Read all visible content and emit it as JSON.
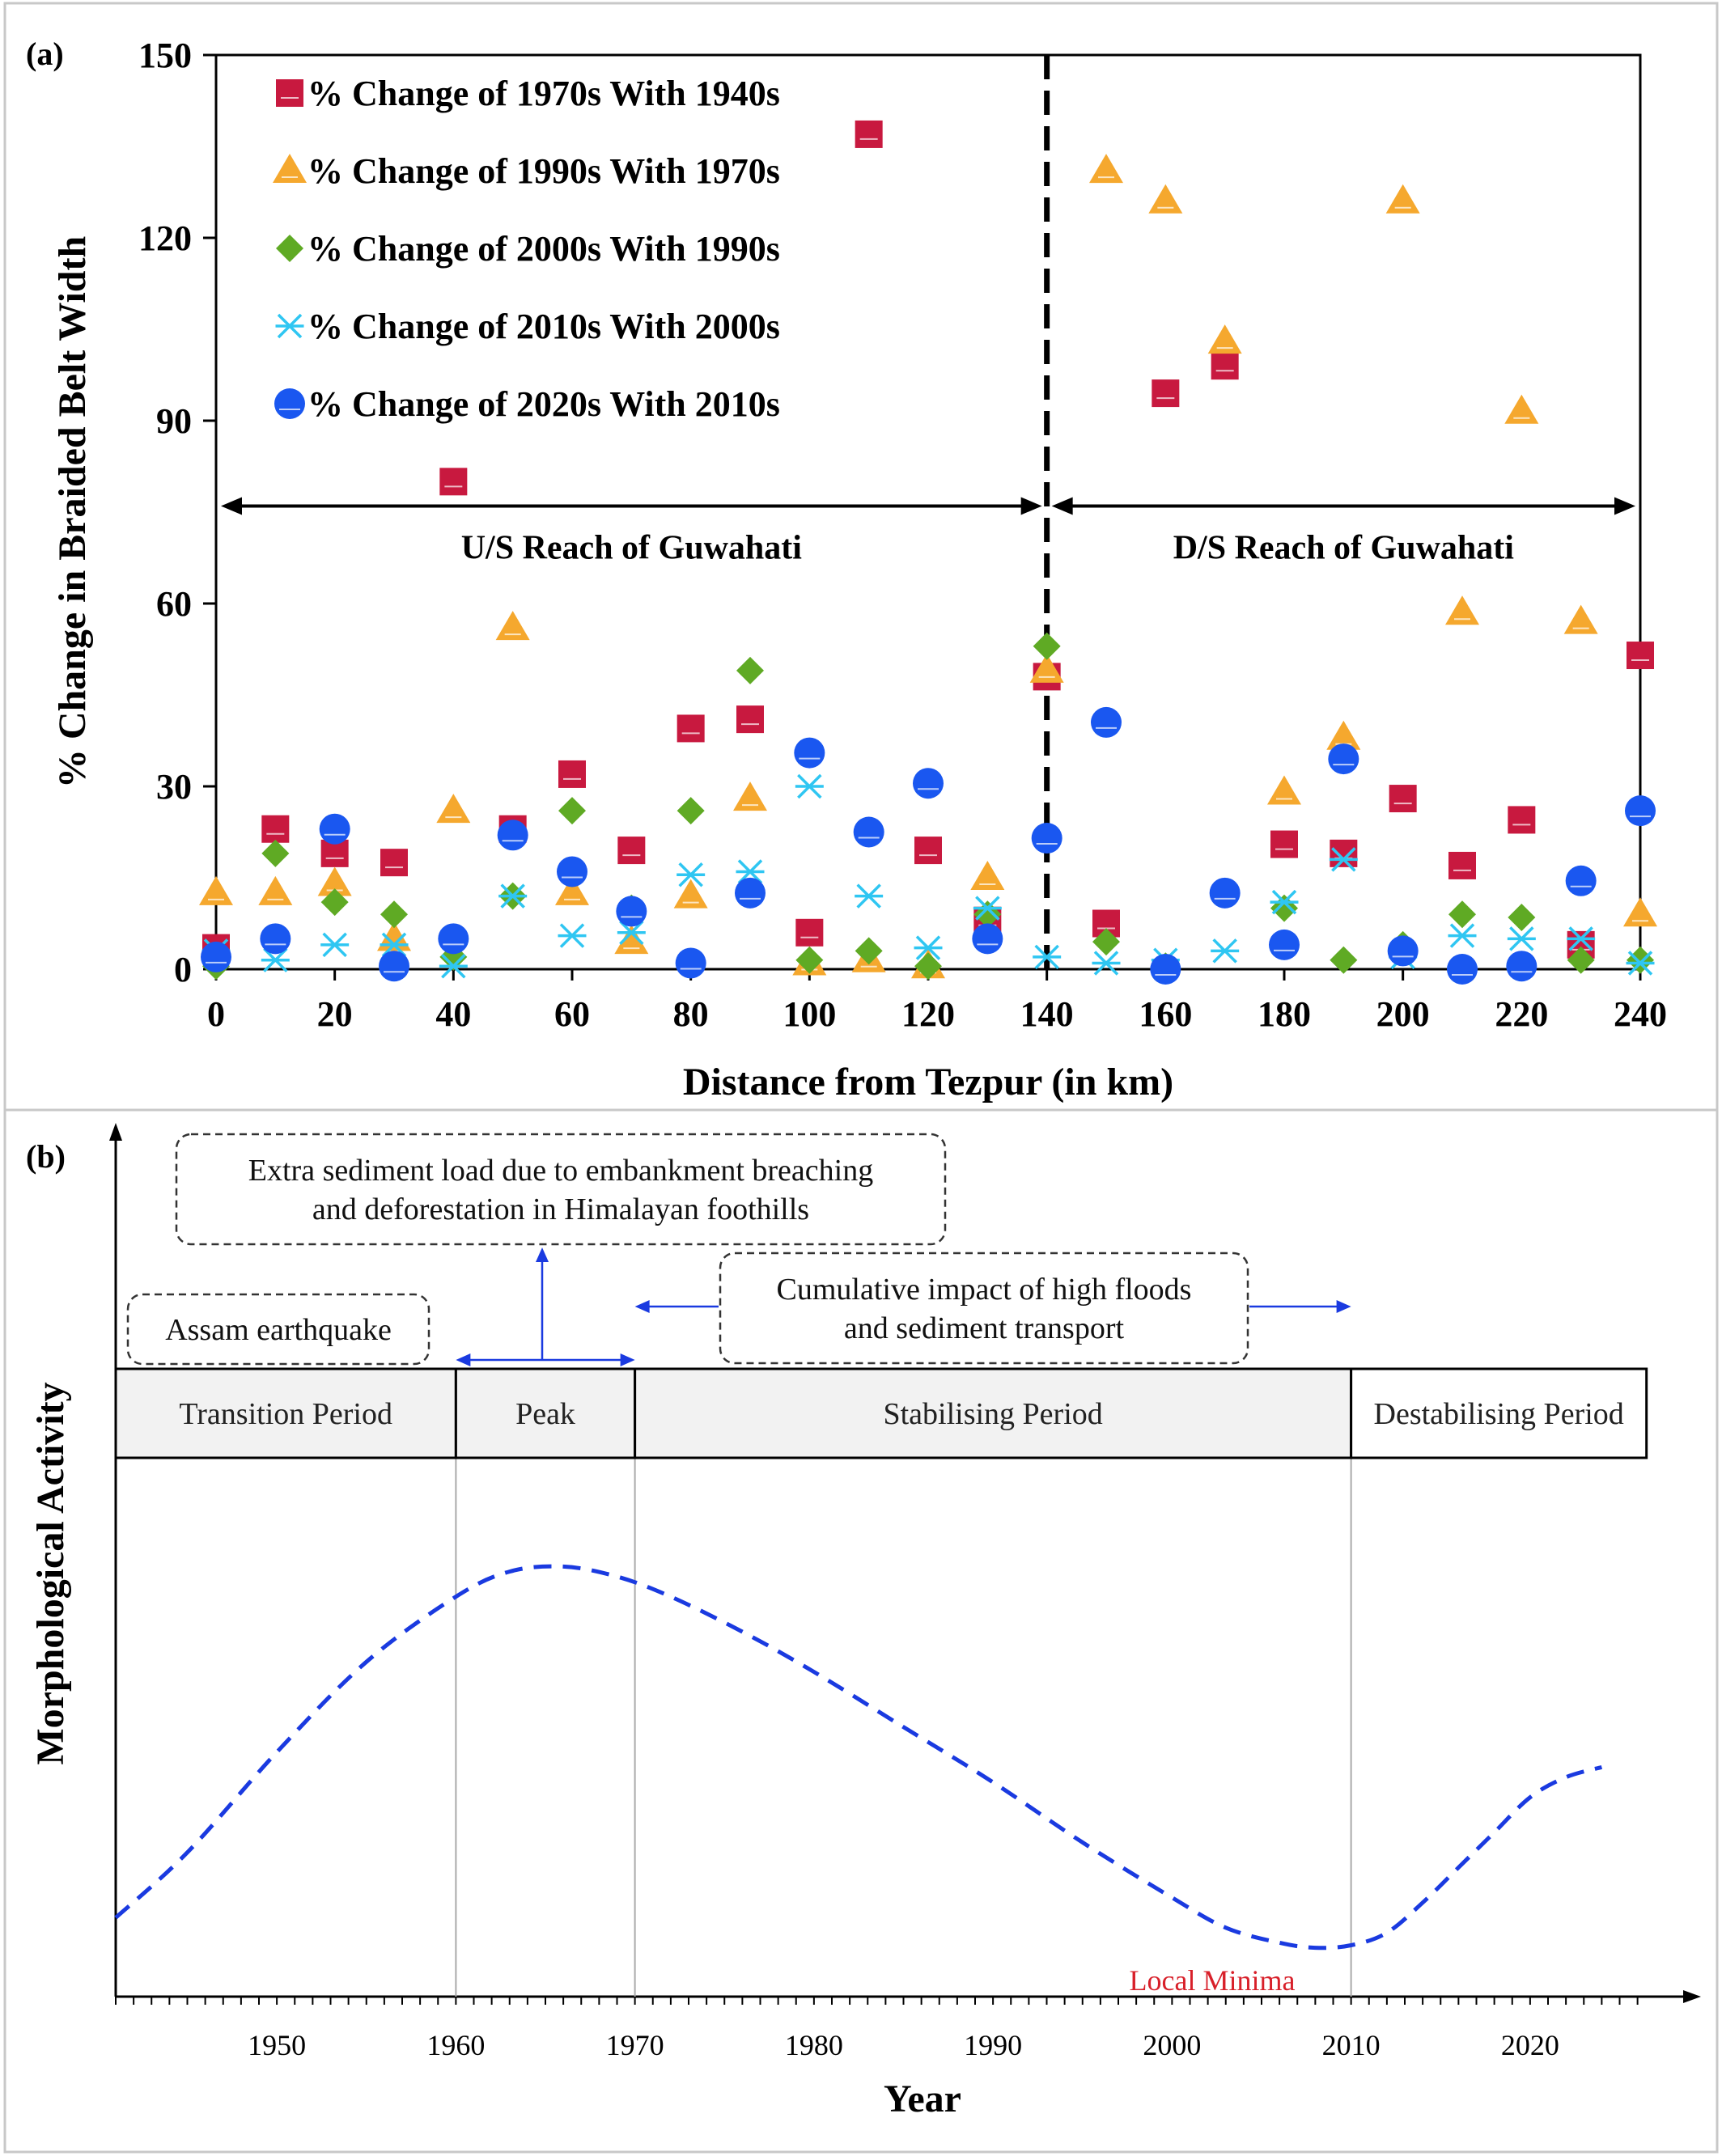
{
  "chart_data": [
    {
      "type": "scatter",
      "panel_label": "(a)",
      "xlabel": "Distance from Tezpur (in km)",
      "ylabel": "% Change in Braided Belt Width",
      "xlim": [
        0,
        240
      ],
      "ylim": [
        0,
        150
      ],
      "x_ticks": [
        "0",
        "20",
        "40",
        "60",
        "80",
        "100",
        "120",
        "140",
        "160",
        "180",
        "200",
        "220",
        "240"
      ],
      "y_ticks": [
        "0",
        "30",
        "60",
        "90",
        "120",
        "150"
      ],
      "grid": false,
      "legend_position": "top-left",
      "divider": {
        "x": 140,
        "style": "dashed"
      },
      "reaches": [
        {
          "label": "U/S Reach of Guwahati",
          "from": 0,
          "to": 140
        },
        {
          "label": "D/S Reach of Guwahati",
          "from": 140,
          "to": 240
        }
      ],
      "reach_arrow_y": 76,
      "series": [
        {
          "name": "% Change of 1970s With 1940s",
          "marker": "square",
          "color": "#C8193F",
          "points": [
            [
              0,
              3.5
            ],
            [
              10,
              23
            ],
            [
              20,
              19
            ],
            [
              30,
              17.5
            ],
            [
              40,
              80
            ],
            [
              50,
              23
            ],
            [
              60,
              32
            ],
            [
              70,
              19.5
            ],
            [
              80,
              39.5
            ],
            [
              90,
              41
            ],
            [
              100,
              6
            ],
            [
              110,
              137
            ],
            [
              120,
              19.5
            ],
            [
              130,
              8
            ],
            [
              140,
              48
            ],
            [
              150,
              7.5
            ],
            [
              160,
              94.5
            ],
            [
              170,
              99
            ],
            [
              180,
              20.5
            ],
            [
              190,
              19
            ],
            [
              200,
              28
            ],
            [
              210,
              17
            ],
            [
              220,
              24.5
            ],
            [
              230,
              4
            ],
            [
              240,
              51.5
            ]
          ]
        },
        {
          "name": "% Change of 1990s With 1970s",
          "marker": "triangle",
          "color": "#F5A82E",
          "points": [
            [
              0,
              12.5
            ],
            [
              10,
              12.5
            ],
            [
              20,
              14
            ],
            [
              30,
              5
            ],
            [
              40,
              26
            ],
            [
              50,
              56
            ],
            [
              60,
              12.5
            ],
            [
              70,
              4.5
            ],
            [
              80,
              12
            ],
            [
              90,
              28
            ],
            [
              100,
              1
            ],
            [
              110,
              1.5
            ],
            [
              120,
              0.5
            ],
            [
              130,
              15
            ],
            [
              140,
              49
            ],
            [
              150,
              131
            ],
            [
              160,
              126
            ],
            [
              170,
              103
            ],
            [
              180,
              29
            ],
            [
              190,
              38
            ],
            [
              200,
              126
            ],
            [
              210,
              58.5
            ],
            [
              220,
              91.5
            ],
            [
              230,
              57
            ],
            [
              240,
              9
            ]
          ]
        },
        {
          "name": "% Change of 2000s With 1990s",
          "marker": "diamond",
          "color": "#5FAA24",
          "points": [
            [
              0,
              0.5
            ],
            [
              10,
              19
            ],
            [
              20,
              11
            ],
            [
              30,
              9
            ],
            [
              40,
              2
            ],
            [
              50,
              12
            ],
            [
              60,
              26
            ],
            [
              70,
              10
            ],
            [
              80,
              26
            ],
            [
              90,
              49
            ],
            [
              100,
              1.5
            ],
            [
              110,
              3
            ],
            [
              120,
              0.5
            ],
            [
              130,
              9
            ],
            [
              140,
              53
            ],
            [
              150,
              4.5
            ],
            [
              160,
              0.5
            ],
            [
              180,
              10
            ],
            [
              190,
              1.5
            ],
            [
              200,
              4
            ],
            [
              210,
              9
            ],
            [
              220,
              8.5
            ],
            [
              230,
              1.5
            ],
            [
              240,
              1.5
            ]
          ]
        },
        {
          "name": "% Change of 2010s With 2000s",
          "marker": "star",
          "color": "#2FC6F2",
          "points": [
            [
              0,
              3
            ],
            [
              10,
              1.5
            ],
            [
              20,
              4
            ],
            [
              30,
              4
            ],
            [
              40,
              0.5
            ],
            [
              50,
              12
            ],
            [
              60,
              5.5
            ],
            [
              70,
              6
            ],
            [
              80,
              15.5
            ],
            [
              90,
              16
            ],
            [
              100,
              30
            ],
            [
              110,
              12
            ],
            [
              120,
              3.5
            ],
            [
              130,
              10
            ],
            [
              140,
              2
            ],
            [
              150,
              1
            ],
            [
              160,
              1.5
            ],
            [
              170,
              3
            ],
            [
              180,
              11
            ],
            [
              190,
              18
            ],
            [
              200,
              2
            ],
            [
              210,
              5.5
            ],
            [
              220,
              5
            ],
            [
              230,
              5
            ],
            [
              240,
              1
            ]
          ]
        },
        {
          "name": "% Change of 2020s With 2010s",
          "marker": "circle",
          "color": "#1A57F0",
          "points": [
            [
              0,
              2
            ],
            [
              10,
              5
            ],
            [
              20,
              23
            ],
            [
              30,
              0.5
            ],
            [
              40,
              5
            ],
            [
              50,
              22
            ],
            [
              60,
              16
            ],
            [
              70,
              9.5
            ],
            [
              80,
              1
            ],
            [
              90,
              12.5
            ],
            [
              100,
              35.5
            ],
            [
              110,
              22.5
            ],
            [
              120,
              30.5
            ],
            [
              130,
              5
            ],
            [
              140,
              21.5
            ],
            [
              150,
              40.5
            ],
            [
              160,
              0
            ],
            [
              170,
              12.5
            ],
            [
              180,
              4
            ],
            [
              190,
              34.5
            ],
            [
              200,
              3
            ],
            [
              210,
              0
            ],
            [
              220,
              0.5
            ],
            [
              230,
              14.5
            ],
            [
              240,
              26
            ]
          ]
        }
      ]
    },
    {
      "type": "line",
      "panel_label": "(b)",
      "xlabel": "Year",
      "ylabel": "Morphological Activity",
      "xlim": [
        1941,
        2029
      ],
      "ylim": [
        0,
        100
      ],
      "x_ticks": [
        "1950",
        "1960",
        "1970",
        "1980",
        "1990",
        "2000",
        "2010",
        "2020"
      ],
      "line_style": "dashed",
      "line_color": "#1A3AE0",
      "curve": {
        "x": [
          1941,
          1945,
          1950,
          1955,
          1960,
          1963,
          1966,
          1969,
          1972,
          1976,
          1980,
          1985,
          1990,
          1995,
          2000,
          2003,
          2006,
          2008,
          2010,
          2012,
          2014,
          2016,
          2018,
          2020,
          2022,
          2024
        ],
        "y": [
          8,
          21,
          41,
          59,
          72,
          77,
          78,
          76,
          72,
          65,
          57,
          46,
          35,
          23,
          12,
          6,
          3,
          2,
          2.5,
          5,
          11,
          18,
          25,
          32,
          36,
          38
        ]
      },
      "periods": [
        {
          "label": "Transition Period",
          "from": 1941,
          "to": 1960
        },
        {
          "label": "Peak",
          "from": 1960,
          "to": 1970
        },
        {
          "label": "Stabilising Period",
          "from": 1970,
          "to": 2010
        },
        {
          "label": "Destabilising Period",
          "from": 2010,
          "to": 2026.5
        }
      ],
      "annotations": [
        {
          "id": "earthquake",
          "text_lines": [
            "Assam earthquake"
          ]
        },
        {
          "id": "sediment",
          "text_lines": [
            "Extra sediment load due to embankment breaching",
            "and deforestation in Himalayan foothills"
          ]
        },
        {
          "id": "floods",
          "text_lines": [
            "Cumulative impact of high floods",
            "and sediment transport"
          ]
        }
      ],
      "minima_label": {
        "text": "Local Minima",
        "color": "#D8202A"
      }
    }
  ]
}
